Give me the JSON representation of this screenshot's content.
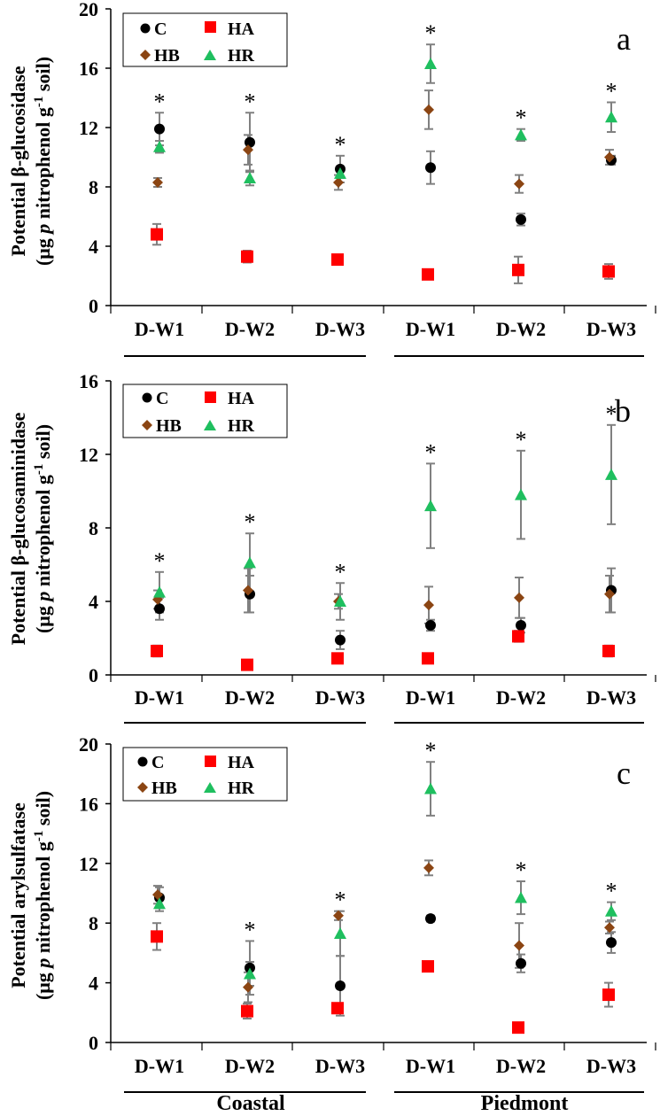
{
  "legend": [
    {
      "key": "C",
      "color": "#000000",
      "marker": "circle"
    },
    {
      "key": "HA",
      "color": "#ff0000",
      "marker": "square"
    },
    {
      "key": "HB",
      "color": "#8b4513",
      "marker": "diamond"
    },
    {
      "key": "HR",
      "color": "#1fbf5f",
      "marker": "triangle"
    }
  ],
  "groups": [
    "Coastal",
    "Piedmont"
  ],
  "significance_marker": "*",
  "chart_data": [
    {
      "type": "scatter",
      "panel_letter": "a",
      "ylabel_line1": "Potential β-glucosidase",
      "ylabel_line2": "(μg p nitrophenol g-1 soil)",
      "ylim": [
        0,
        20
      ],
      "yticks": [
        0,
        4,
        8,
        12,
        16,
        20
      ],
      "categories": [
        "D-W1",
        "D-W2",
        "D-W3",
        "D-W1",
        "D-W2",
        "D-W3"
      ],
      "series": [
        {
          "name": "C",
          "values": [
            11.9,
            11.0,
            9.2,
            9.3,
            5.8,
            9.8
          ],
          "errors": [
            1.1,
            2.0,
            0.9,
            1.1,
            0.4,
            0.3
          ]
        },
        {
          "name": "HA",
          "values": [
            4.8,
            3.3,
            3.1,
            2.1,
            2.4,
            2.3
          ],
          "errors": [
            0.7,
            0.4,
            0.3,
            0.3,
            0.9,
            0.5
          ]
        },
        {
          "name": "HB",
          "values": [
            8.3,
            10.5,
            8.3,
            13.2,
            8.2,
            10.0
          ],
          "errors": [
            0.3,
            1.0,
            0.5,
            1.3,
            0.6,
            0.5
          ]
        },
        {
          "name": "HR",
          "values": [
            10.7,
            8.6,
            8.9,
            16.3,
            11.5,
            12.7
          ],
          "errors": [
            0.4,
            0.5,
            0.3,
            1.3,
            0.4,
            1.0
          ]
        }
      ],
      "stars": [
        true,
        true,
        true,
        true,
        true,
        true
      ]
    },
    {
      "type": "scatter",
      "panel_letter": "b",
      "ylabel_line1": "Potential β-glucosaminidase",
      "ylabel_line2": "(μg p nitrophenol g-1 soil)",
      "ylim": [
        0,
        16
      ],
      "yticks": [
        0,
        4,
        8,
        12,
        16
      ],
      "categories": [
        "D-W1",
        "D-W2",
        "D-W3",
        "D-W1",
        "D-W2",
        "D-W3"
      ],
      "series": [
        {
          "name": "C",
          "values": [
            3.6,
            4.4,
            1.9,
            2.7,
            2.7,
            4.6
          ],
          "errors": [
            0.6,
            1.0,
            0.5,
            0.3,
            0.4,
            1.2
          ]
        },
        {
          "name": "HA",
          "values": [
            1.3,
            0.55,
            0.9,
            0.9,
            2.1,
            1.3
          ],
          "errors": [
            0.3,
            0.1,
            0.15,
            0.1,
            0.3,
            0.3
          ]
        },
        {
          "name": "HB",
          "values": [
            4.1,
            4.6,
            4.0,
            3.8,
            4.2,
            4.4
          ],
          "errors": [
            0.5,
            1.2,
            0.4,
            1.0,
            1.1,
            1.0
          ]
        },
        {
          "name": "HR",
          "values": [
            4.5,
            6.1,
            4.0,
            9.2,
            9.8,
            10.9
          ],
          "errors": [
            1.1,
            1.6,
            1.0,
            2.3,
            2.4,
            2.7
          ]
        }
      ],
      "stars": [
        true,
        true,
        true,
        true,
        true,
        true
      ]
    },
    {
      "type": "scatter",
      "panel_letter": "c",
      "ylabel_line1": "Potential arylsulfatase",
      "ylabel_line2": "(μg p nitrophenol g-1 soil)",
      "ylim": [
        0,
        20
      ],
      "yticks": [
        0,
        4,
        8,
        12,
        16,
        20
      ],
      "categories": [
        "D-W1",
        "D-W2",
        "D-W3",
        "D-W1",
        "D-W2",
        "D-W3"
      ],
      "series": [
        {
          "name": "C",
          "values": [
            9.7,
            5.0,
            3.8,
            8.3,
            5.3,
            6.7
          ],
          "errors": [
            0.7,
            1.8,
            2.0,
            0.2,
            0.6,
            0.7
          ]
        },
        {
          "name": "HA",
          "values": [
            7.1,
            2.1,
            2.3,
            5.1,
            1.0,
            3.2
          ],
          "errors": [
            0.9,
            0.5,
            0.3,
            0.2,
            0.3,
            0.8
          ]
        },
        {
          "name": "HB",
          "values": [
            9.9,
            3.7,
            8.5,
            11.7,
            6.5,
            7.7
          ],
          "errors": [
            0.6,
            1.0,
            0.3,
            0.5,
            1.5,
            0.4
          ]
        },
        {
          "name": "HR",
          "values": [
            9.3,
            4.6,
            7.3,
            17.0,
            9.7,
            8.8
          ],
          "errors": [
            0.5,
            0.8,
            1.5,
            1.8,
            1.1,
            0.6
          ]
        }
      ],
      "stars": [
        false,
        true,
        true,
        true,
        true,
        true
      ]
    }
  ]
}
